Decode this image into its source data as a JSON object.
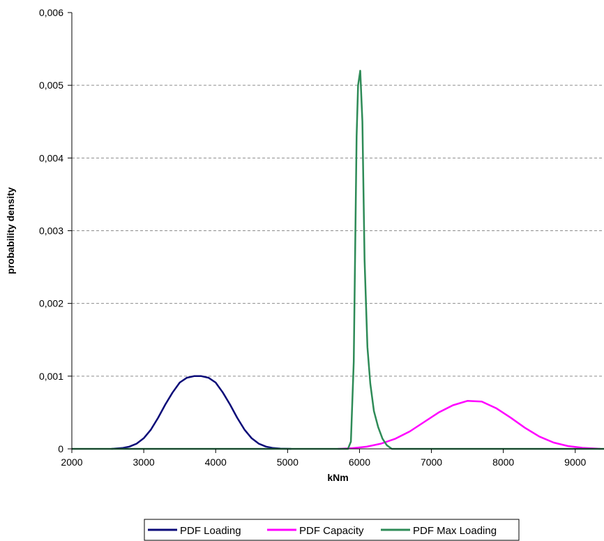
{
  "chart_data": {
    "type": "line",
    "title": "",
    "xlabel": "kNm",
    "ylabel": "probability density",
    "xlim": [
      2000,
      9400
    ],
    "ylim": [
      0,
      0.006
    ],
    "x_ticks": [
      2000,
      3000,
      4000,
      5000,
      6000,
      7000,
      8000,
      9000
    ],
    "x_tick_labels": [
      "2000",
      "3000",
      "4000",
      "5000",
      "6000",
      "7000",
      "8000",
      "9000"
    ],
    "y_ticks": [
      0,
      0.001,
      0.002,
      0.003,
      0.004,
      0.005,
      0.006
    ],
    "y_tick_labels": [
      "0",
      "0,001",
      "0,002",
      "0,003",
      "0,004",
      "0,005",
      "0,006"
    ],
    "grid": "horizontal-dashed",
    "legend_position": "bottom",
    "series": [
      {
        "name": "PDF Loading",
        "color": "#0a0a78",
        "points": [
          [
            2550,
            0
          ],
          [
            2700,
            1.2e-05
          ],
          [
            2800,
            3.1e-05
          ],
          [
            2900,
            7.1e-05
          ],
          [
            3000,
            0.000146
          ],
          [
            3100,
            0.000265
          ],
          [
            3200,
            0.000427
          ],
          [
            3300,
            0.00061
          ],
          [
            3400,
            0.000775
          ],
          [
            3500,
            0.000912
          ],
          [
            3600,
            0.000978
          ],
          [
            3700,
            0.001
          ],
          [
            3800,
            0.001
          ],
          [
            3900,
            0.000978
          ],
          [
            4000,
            0.000912
          ],
          [
            4100,
            0.000775
          ],
          [
            4200,
            0.00061
          ],
          [
            4300,
            0.000427
          ],
          [
            4400,
            0.000265
          ],
          [
            4500,
            0.000146
          ],
          [
            4600,
            7.1e-05
          ],
          [
            4700,
            3.1e-05
          ],
          [
            4800,
            1.2e-05
          ],
          [
            4900,
            4e-06
          ],
          [
            5050,
            0
          ]
        ]
      },
      {
        "name": "PDF Capacity",
        "color": "#ff00ff",
        "points": [
          [
            5700,
            0
          ],
          [
            5900,
            1e-05
          ],
          [
            6100,
            3e-05
          ],
          [
            6300,
            7.2e-05
          ],
          [
            6500,
            0.00014
          ],
          [
            6700,
            0.00024
          ],
          [
            6900,
            0.00037
          ],
          [
            7100,
            0.0005
          ],
          [
            7300,
            0.0006
          ],
          [
            7500,
            0.00066
          ],
          [
            7700,
            0.00065
          ],
          [
            7900,
            0.00056
          ],
          [
            8100,
            0.00043
          ],
          [
            8300,
            0.00029
          ],
          [
            8500,
            0.00017
          ],
          [
            8700,
            8.6e-05
          ],
          [
            8900,
            3.8e-05
          ],
          [
            9100,
            1.4e-05
          ],
          [
            9300,
            4e-06
          ],
          [
            9350,
            0
          ]
        ]
      },
      {
        "name": "PDF Max Loading",
        "color": "#2e8b57",
        "points": [
          [
            2000,
            0
          ],
          [
            5840,
            0
          ],
          [
            5880,
            0.0001
          ],
          [
            5920,
            0.0012
          ],
          [
            5960,
            0.0043
          ],
          [
            5980,
            0.005
          ],
          [
            6010,
            0.0052
          ],
          [
            6040,
            0.0045
          ],
          [
            6070,
            0.0026
          ],
          [
            6110,
            0.0014
          ],
          [
            6150,
            0.0009
          ],
          [
            6200,
            0.00052
          ],
          [
            6260,
            0.0003
          ],
          [
            6320,
            0.00014
          ],
          [
            6380,
            5e-05
          ],
          [
            6450,
            0
          ],
          [
            9400,
            0
          ]
        ]
      }
    ]
  }
}
